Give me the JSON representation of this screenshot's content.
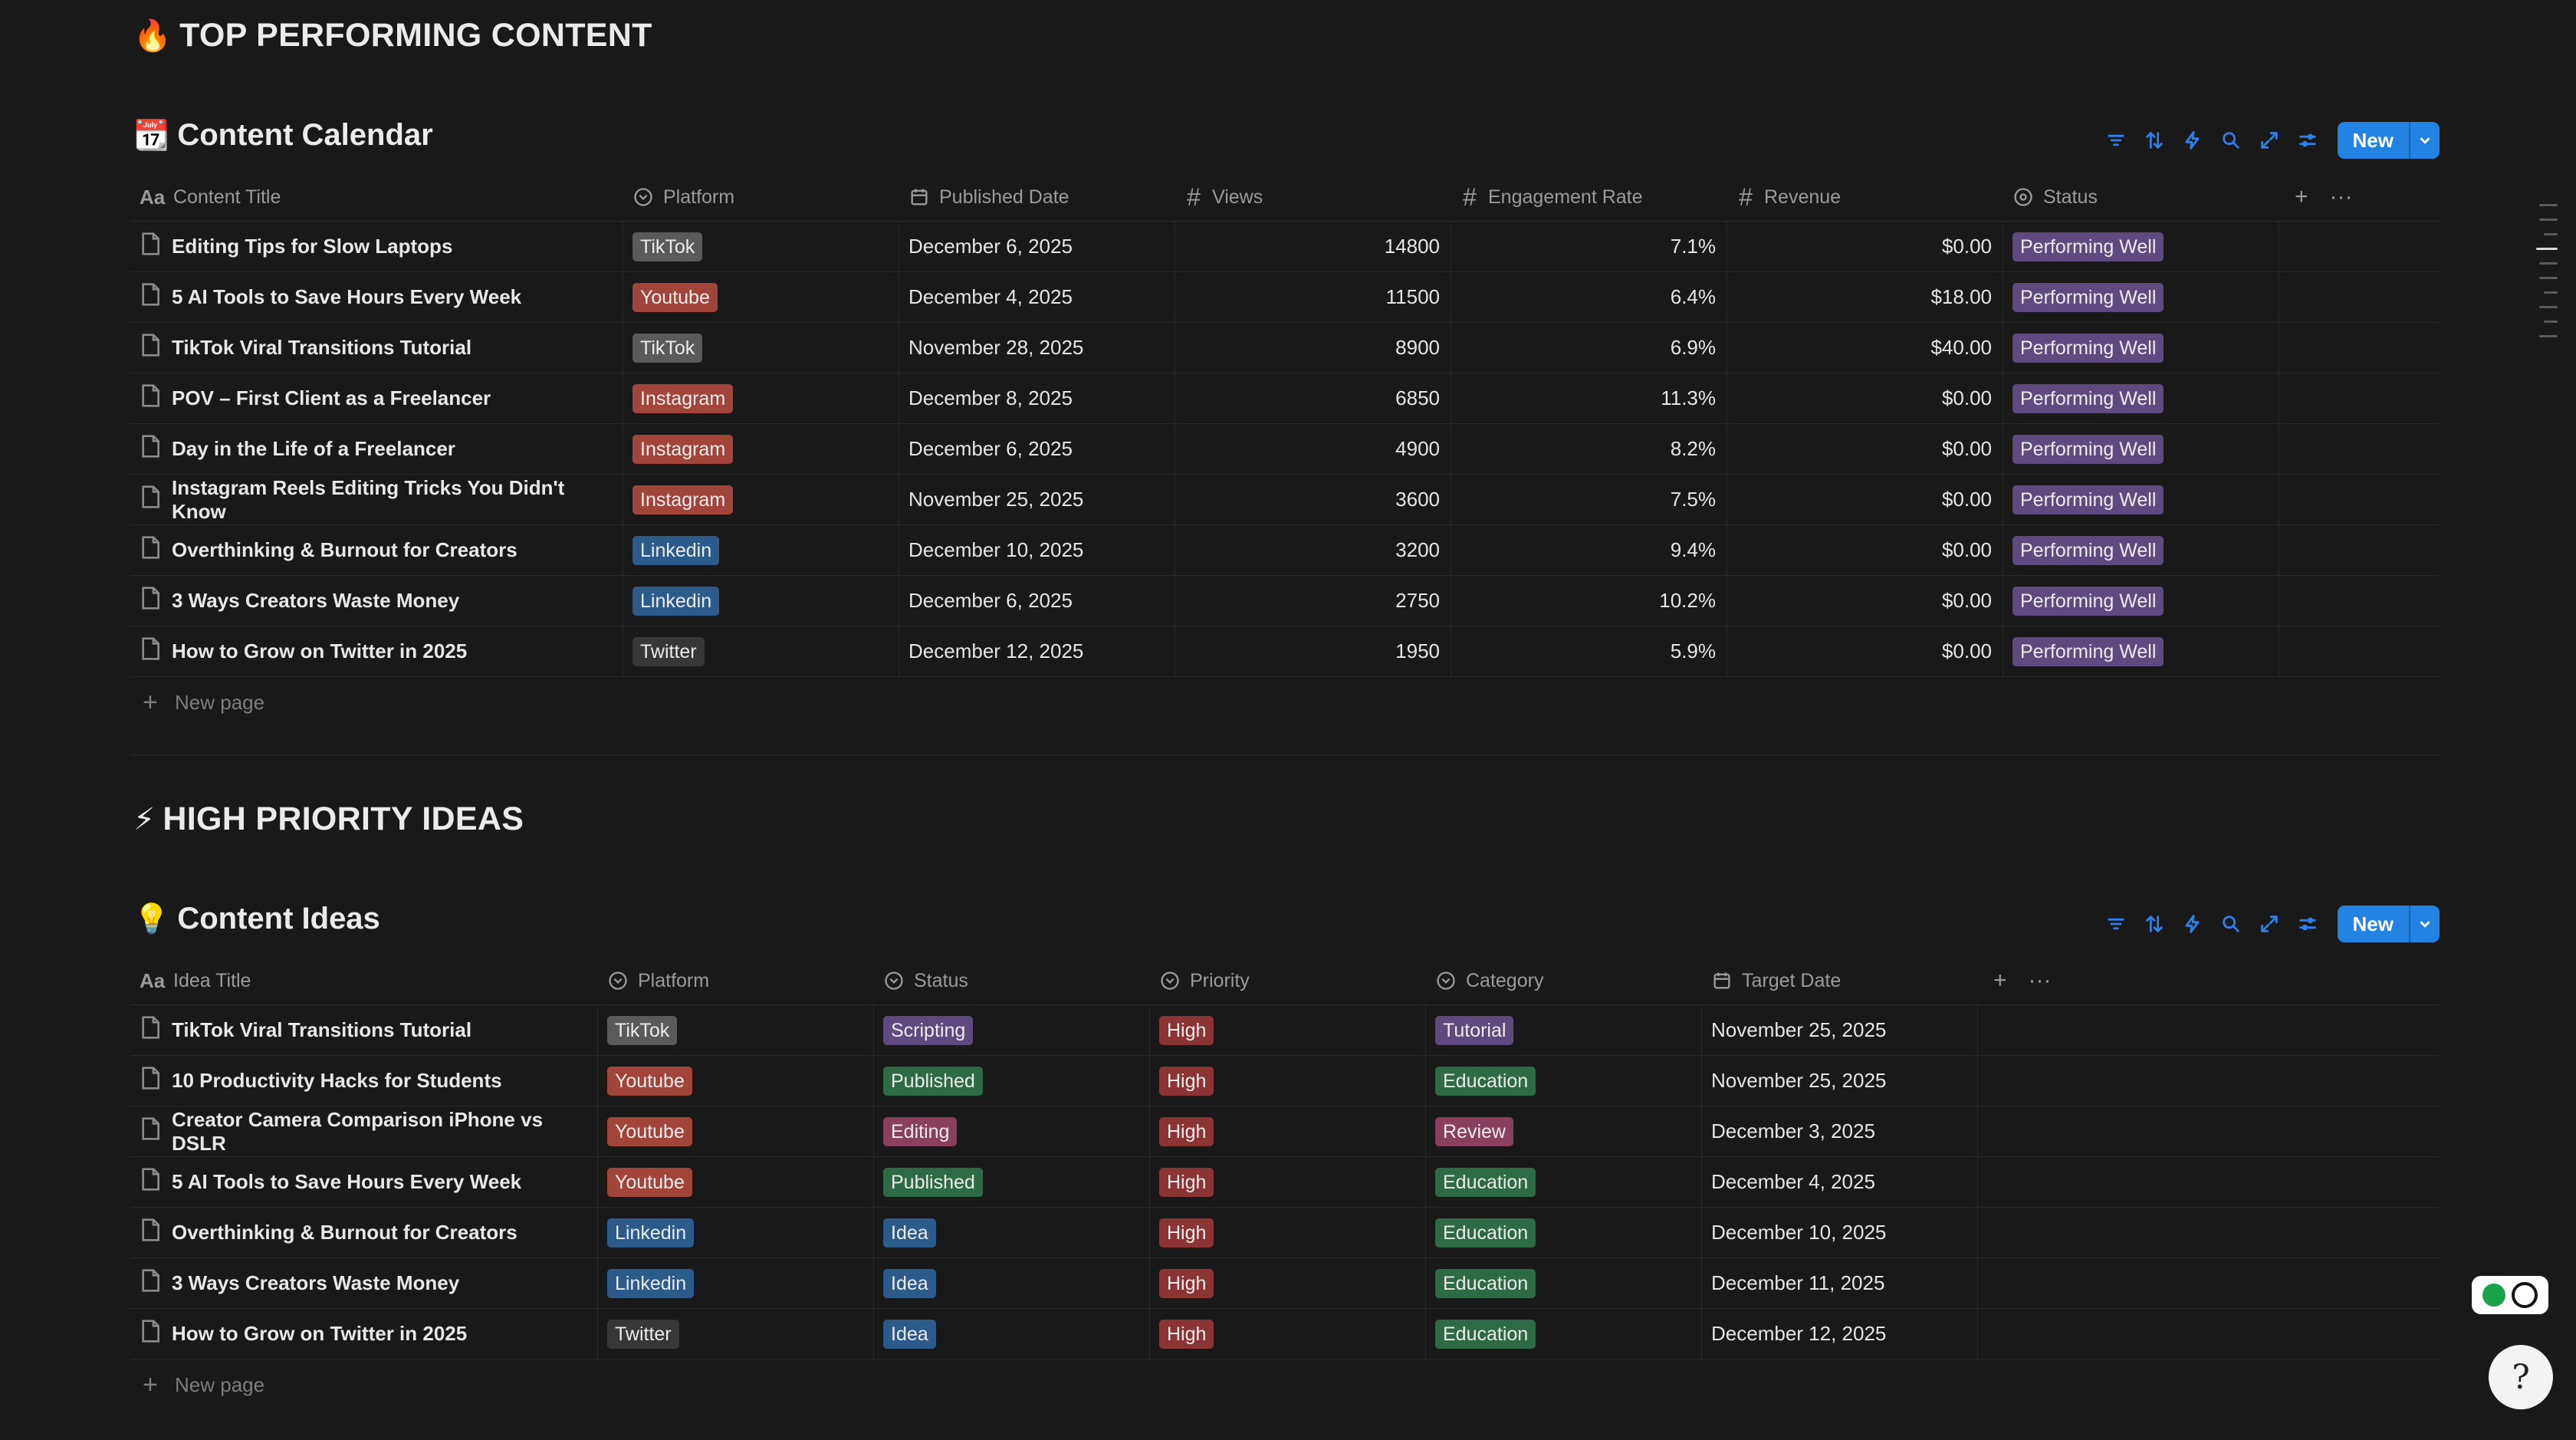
{
  "section1": {
    "emoji": "🔥",
    "title": "TOP PERFORMING CONTENT"
  },
  "section2": {
    "emoji": "⚡",
    "title": "HIGH PRIORITY IDEAS"
  },
  "calendar": {
    "emoji": "📆",
    "title": "Content Calendar",
    "new_label": "New",
    "new_page_label": "New page",
    "columns": {
      "title": "Content Title",
      "platform": "Platform",
      "published": "Published Date",
      "views": "Views",
      "engagement": "Engagement Rate",
      "revenue": "Revenue",
      "status": "Status"
    },
    "rows": [
      {
        "title": "Editing Tips for Slow Laptops",
        "platform": "TikTok",
        "published": "December 6, 2025",
        "views": "14800",
        "engagement": "7.1%",
        "revenue": "$0.00",
        "status": "Performing Well"
      },
      {
        "title": "5 AI Tools to Save Hours Every Week",
        "platform": "Youtube",
        "published": "December 4, 2025",
        "views": "11500",
        "engagement": "6.4%",
        "revenue": "$18.00",
        "status": "Performing Well"
      },
      {
        "title": "TikTok Viral Transitions Tutorial",
        "platform": "TikTok",
        "published": "November 28, 2025",
        "views": "8900",
        "engagement": "6.9%",
        "revenue": "$40.00",
        "status": "Performing Well"
      },
      {
        "title": "POV – First Client as a Freelancer",
        "platform": "Instagram",
        "published": "December 8, 2025",
        "views": "6850",
        "engagement": "11.3%",
        "revenue": "$0.00",
        "status": "Performing Well"
      },
      {
        "title": "Day in the Life of a Freelancer",
        "platform": "Instagram",
        "published": "December 6, 2025",
        "views": "4900",
        "engagement": "8.2%",
        "revenue": "$0.00",
        "status": "Performing Well"
      },
      {
        "title": "Instagram Reels Editing Tricks You Didn't Know",
        "platform": "Instagram",
        "published": "November 25, 2025",
        "views": "3600",
        "engagement": "7.5%",
        "revenue": "$0.00",
        "status": "Performing Well"
      },
      {
        "title": "Overthinking & Burnout for Creators",
        "platform": "Linkedin",
        "published": "December 10, 2025",
        "views": "3200",
        "engagement": "9.4%",
        "revenue": "$0.00",
        "status": "Performing Well"
      },
      {
        "title": "3 Ways Creators Waste Money",
        "platform": "Linkedin",
        "published": "December 6, 2025",
        "views": "2750",
        "engagement": "10.2%",
        "revenue": "$0.00",
        "status": "Performing Well"
      },
      {
        "title": "How to Grow on Twitter in 2025",
        "platform": "Twitter",
        "published": "December 12, 2025",
        "views": "1950",
        "engagement": "5.9%",
        "revenue": "$0.00",
        "status": "Performing Well"
      }
    ]
  },
  "ideas": {
    "emoji": "💡",
    "title": "Content Ideas",
    "new_label": "New",
    "new_page_label": "New page",
    "columns": {
      "title": "Idea Title",
      "platform": "Platform",
      "status": "Status",
      "priority": "Priority",
      "category": "Category",
      "target": "Target Date"
    },
    "rows": [
      {
        "title": "TikTok Viral Transitions Tutorial",
        "platform": "TikTok",
        "status": "Scripting",
        "priority": "High",
        "category": "Tutorial",
        "target": "November 25, 2025"
      },
      {
        "title": "10 Productivity Hacks for Students",
        "platform": "Youtube",
        "status": "Published",
        "priority": "High",
        "category": "Education",
        "target": "November 25, 2025"
      },
      {
        "title": "Creator Camera Comparison iPhone vs DSLR",
        "platform": "Youtube",
        "status": "Editing",
        "priority": "High",
        "category": "Review",
        "target": "December 3, 2025"
      },
      {
        "title": "5 AI Tools to Save Hours Every Week",
        "platform": "Youtube",
        "status": "Published",
        "priority": "High",
        "category": "Education",
        "target": "December 4, 2025"
      },
      {
        "title": "Overthinking & Burnout for Creators",
        "platform": "Linkedin",
        "status": "Idea",
        "priority": "High",
        "category": "Education",
        "target": "December 10, 2025"
      },
      {
        "title": "3 Ways Creators Waste Money",
        "platform": "Linkedin",
        "status": "Idea",
        "priority": "High",
        "category": "Education",
        "target": "December 11, 2025"
      },
      {
        "title": "How to Grow on Twitter in 2025",
        "platform": "Twitter",
        "status": "Idea",
        "priority": "High",
        "category": "Education",
        "target": "December 12, 2025"
      }
    ]
  },
  "tag_colors": {
    "TikTok": "#5a5a5a",
    "Youtube": "#a1453a",
    "Instagram": "#a1453a",
    "Linkedin": "#2c5a8a",
    "Twitter": "#373737",
    "Performing Well": "#5e4a7e",
    "Scripting": "#5e4a7e",
    "Published": "#2e6a46",
    "Editing": "#8a3f5e",
    "Idea": "#2c5a8a",
    "High": "#8a3434",
    "Tutorial": "#5e4a7e",
    "Education": "#2e6a46",
    "Review": "#8a3f5e"
  }
}
